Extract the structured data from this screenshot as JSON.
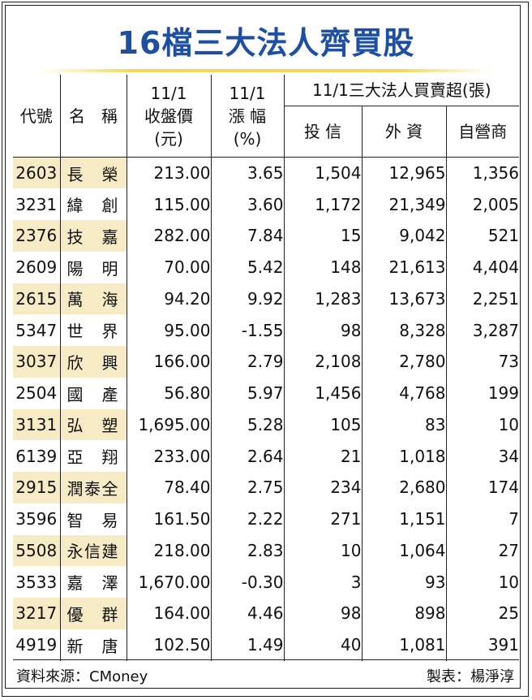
{
  "title": "16檔三大法人齊買股",
  "headers": {
    "code": "代號",
    "name": "名　稱",
    "close_line1": "11/1",
    "close_line2": "收盤價",
    "close_line3": "(元)",
    "change_line1": "11/1",
    "change_line2": "漲 幅",
    "change_line3": "(%)",
    "group": "11/1三大法人買賣超(張)",
    "trust": "投 信",
    "foreign": "外 資",
    "dealer": "自營商"
  },
  "rows": [
    {
      "code": "2603",
      "name": "長榮",
      "close": "213.00",
      "change": "3.65",
      "trust": "1,504",
      "foreign": "12,965",
      "dealer": "1,356"
    },
    {
      "code": "3231",
      "name": "緯創",
      "close": "115.00",
      "change": "3.60",
      "trust": "1,172",
      "foreign": "21,349",
      "dealer": "2,005"
    },
    {
      "code": "2376",
      "name": "技嘉",
      "close": "282.00",
      "change": "7.84",
      "trust": "15",
      "foreign": "9,042",
      "dealer": "521"
    },
    {
      "code": "2609",
      "name": "陽明",
      "close": "70.00",
      "change": "5.42",
      "trust": "148",
      "foreign": "21,613",
      "dealer": "4,404"
    },
    {
      "code": "2615",
      "name": "萬海",
      "close": "94.20",
      "change": "9.92",
      "trust": "1,283",
      "foreign": "13,673",
      "dealer": "2,251"
    },
    {
      "code": "5347",
      "name": "世界",
      "close": "95.00",
      "change": "-1.55",
      "trust": "98",
      "foreign": "8,328",
      "dealer": "3,287"
    },
    {
      "code": "3037",
      "name": "欣興",
      "close": "166.00",
      "change": "2.79",
      "trust": "2,108",
      "foreign": "2,780",
      "dealer": "73"
    },
    {
      "code": "2504",
      "name": "國產",
      "close": "56.80",
      "change": "5.97",
      "trust": "1,456",
      "foreign": "4,768",
      "dealer": "199"
    },
    {
      "code": "3131",
      "name": "弘塑",
      "close": "1,695.00",
      "change": "5.28",
      "trust": "105",
      "foreign": "83",
      "dealer": "10"
    },
    {
      "code": "6139",
      "name": "亞翔",
      "close": "233.00",
      "change": "2.64",
      "trust": "21",
      "foreign": "1,018",
      "dealer": "34"
    },
    {
      "code": "2915",
      "name": "潤泰全",
      "close": "78.40",
      "change": "2.75",
      "trust": "234",
      "foreign": "2,680",
      "dealer": "174"
    },
    {
      "code": "3596",
      "name": "智易",
      "close": "161.50",
      "change": "2.22",
      "trust": "271",
      "foreign": "1,151",
      "dealer": "7"
    },
    {
      "code": "5508",
      "name": "永信建",
      "close": "218.00",
      "change": "2.83",
      "trust": "10",
      "foreign": "1,064",
      "dealer": "27"
    },
    {
      "code": "3533",
      "name": "嘉澤",
      "close": "1,670.00",
      "change": "-0.30",
      "trust": "3",
      "foreign": "93",
      "dealer": "10"
    },
    {
      "code": "3217",
      "name": "優群",
      "close": "164.00",
      "change": "4.46",
      "trust": "98",
      "foreign": "898",
      "dealer": "25"
    },
    {
      "code": "4919",
      "name": "新唐",
      "close": "102.50",
      "change": "1.49",
      "trust": "40",
      "foreign": "1,081",
      "dealer": "391"
    }
  ],
  "footer": {
    "source": "資料來源：CMoney",
    "maker": "製表：楊淨淳"
  },
  "colors": {
    "title": "#1d4fa3",
    "row_highlight": "#f7ebc6",
    "title_underline": "#f2d95c"
  }
}
